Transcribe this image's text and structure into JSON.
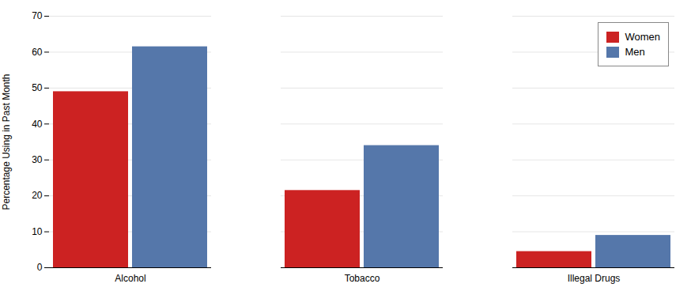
{
  "chart_data": {
    "type": "bar",
    "categories": [
      "Alcohol",
      "Tobacco",
      "Illegal Drugs"
    ],
    "series": [
      {
        "name": "Women",
        "color": "#cc2222",
        "values": [
          49,
          21.5,
          4.5
        ]
      },
      {
        "name": "Men",
        "color": "#5577aa",
        "values": [
          61.5,
          34,
          9
        ]
      }
    ],
    "ylabel": "Percentage Using in Past Month",
    "ylim": [
      0,
      70
    ],
    "yticks": [
      0,
      10,
      20,
      30,
      40,
      50,
      60,
      70
    ],
    "grid": true,
    "legend": "upper right"
  }
}
